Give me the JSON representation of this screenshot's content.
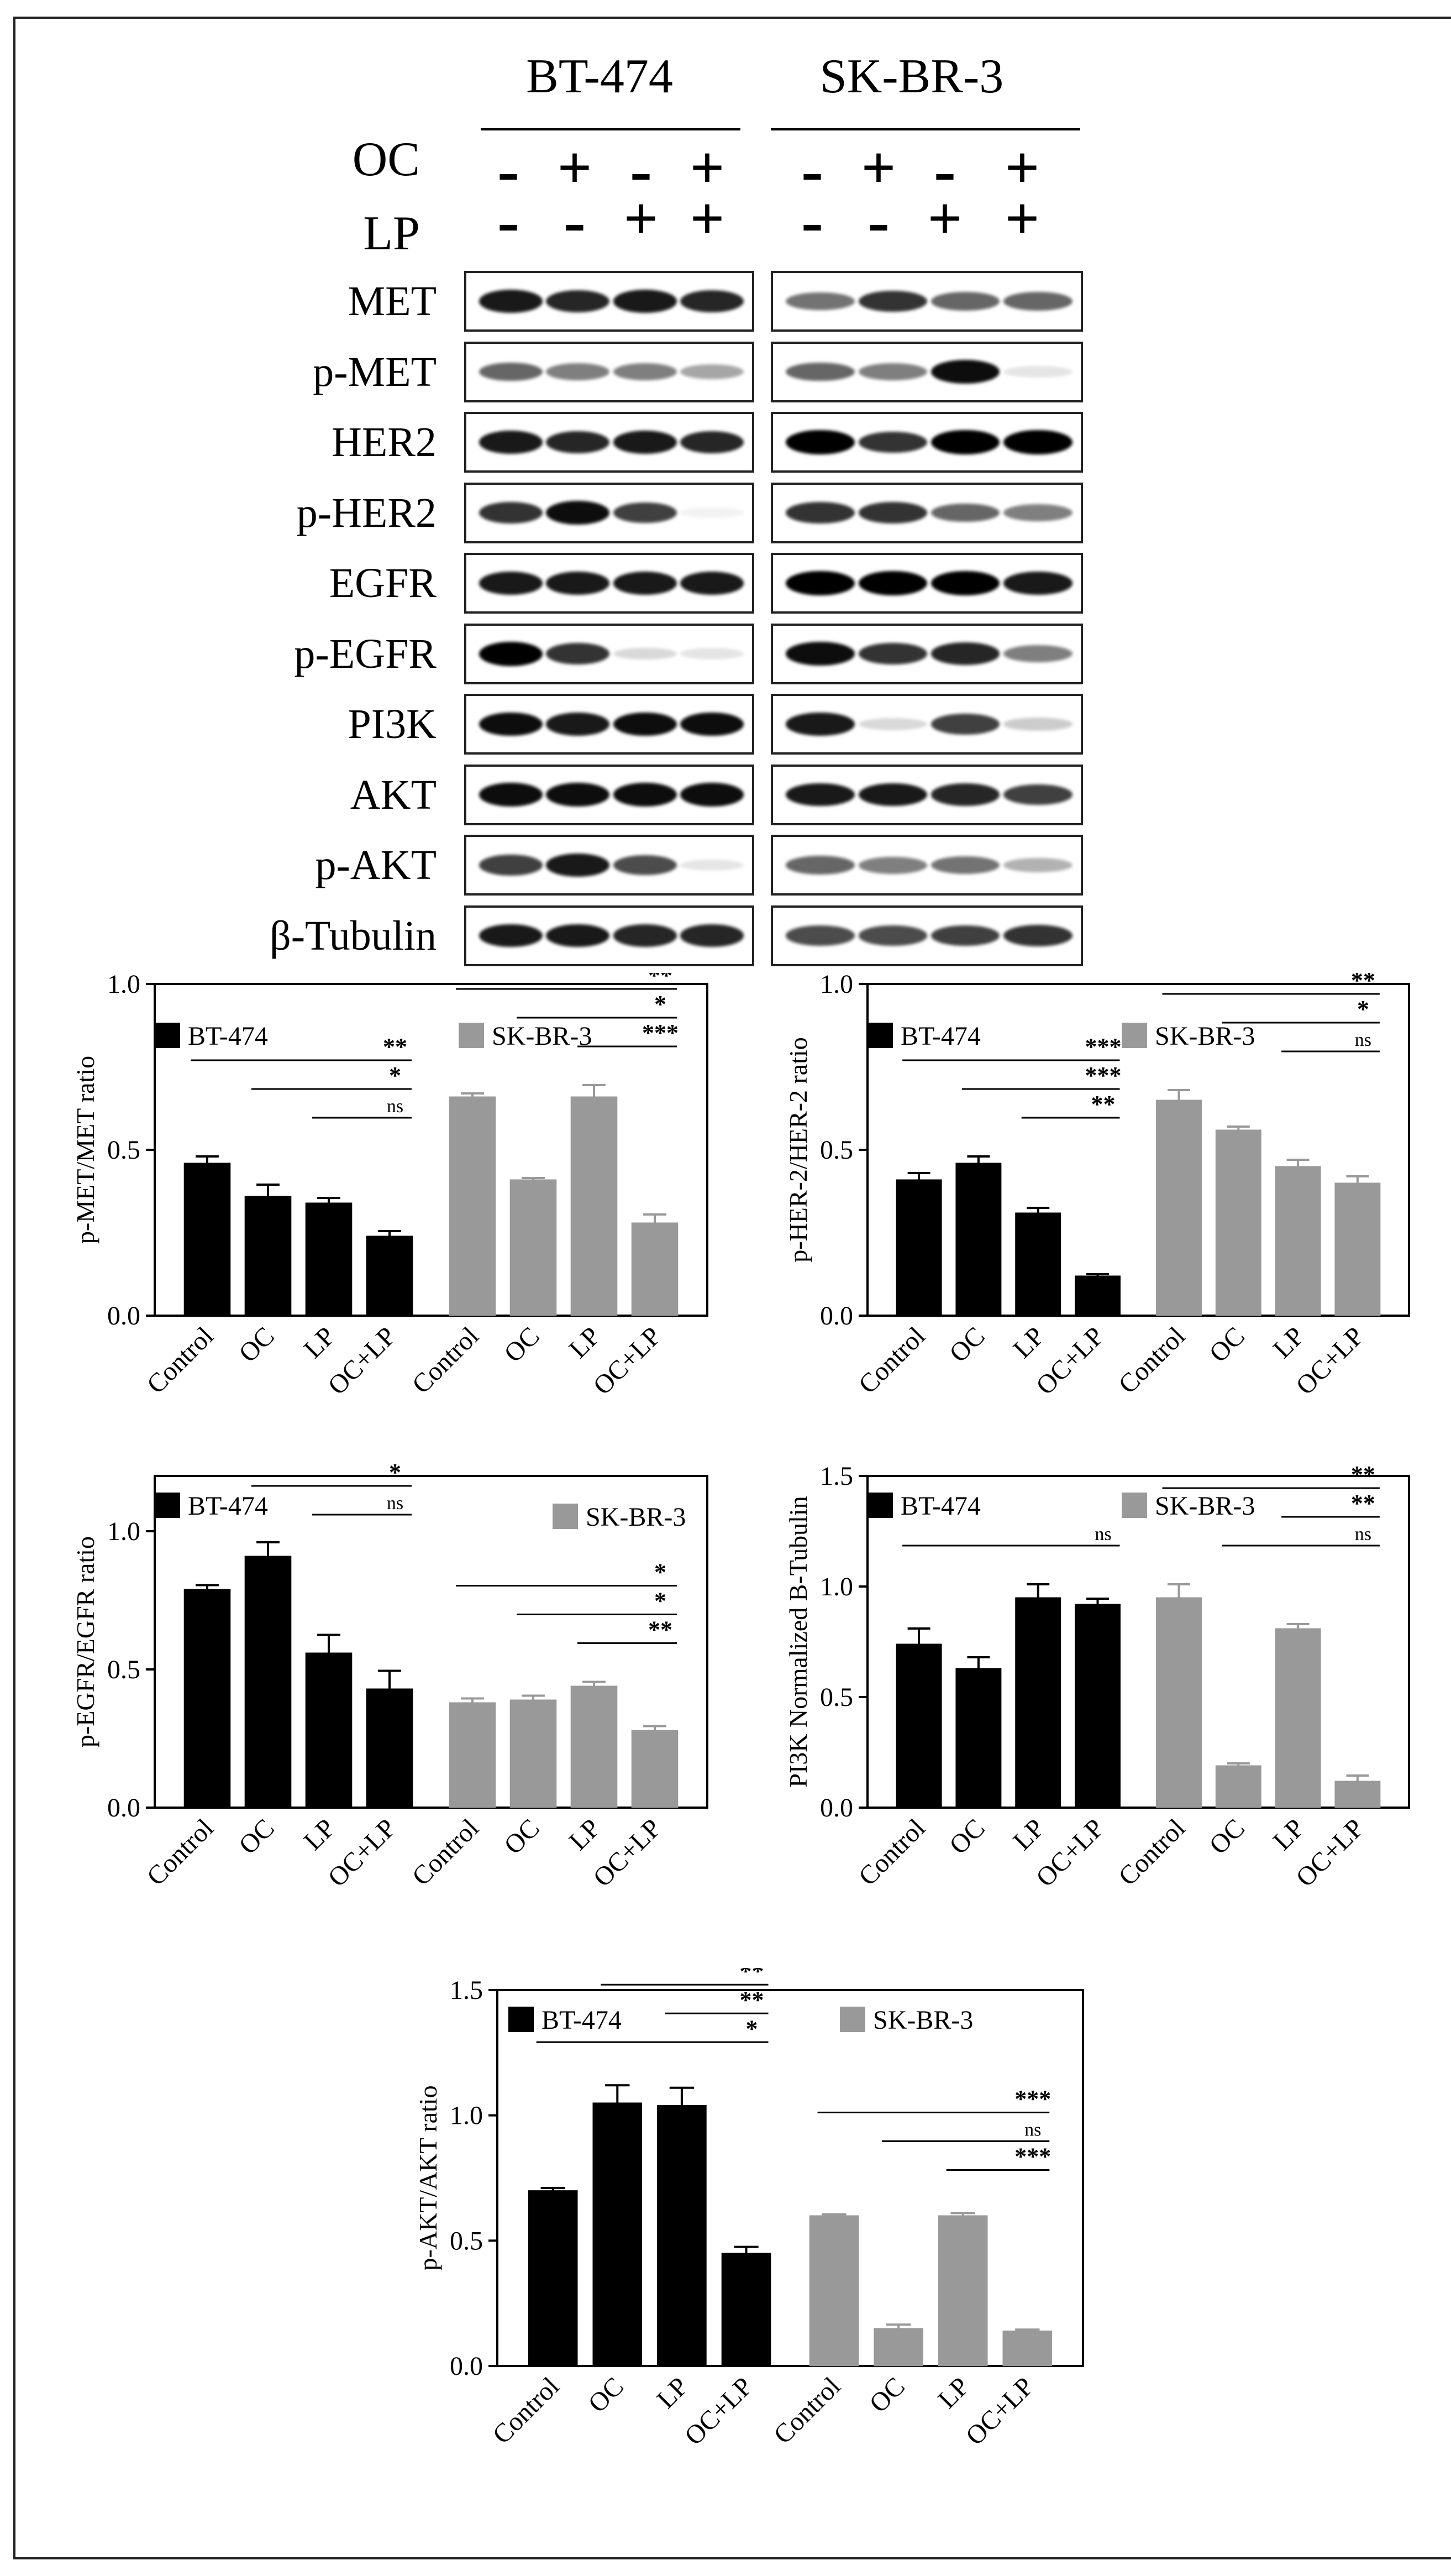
{
  "blot_panel": {
    "cell_lines": [
      "BT-474",
      "SK-BR-3"
    ],
    "treatment_rows": [
      {
        "label": "OC",
        "signs": [
          "-",
          "+",
          "-",
          "+"
        ]
      },
      {
        "label": "LP",
        "signs": [
          "-",
          "-",
          "+",
          "+"
        ]
      }
    ],
    "proteins": [
      "MET",
      "p-MET",
      "HER2",
      "p-HER2",
      "EGFR",
      "p-EGFR",
      "PI3K",
      "AKT",
      "p-AKT",
      "β-Tubulin"
    ],
    "band_intensity": {
      "BT-474": [
        [
          0.9,
          0.85,
          0.9,
          0.85
        ],
        [
          0.6,
          0.5,
          0.5,
          0.35
        ],
        [
          0.9,
          0.85,
          0.9,
          0.85
        ],
        [
          0.8,
          0.95,
          0.75,
          0.05
        ],
        [
          0.9,
          0.9,
          0.9,
          0.9
        ],
        [
          1.0,
          0.8,
          0.15,
          0.1
        ],
        [
          0.95,
          0.9,
          0.95,
          0.95
        ],
        [
          0.95,
          0.95,
          0.95,
          0.95
        ],
        [
          0.75,
          0.9,
          0.7,
          0.1
        ],
        [
          0.9,
          0.9,
          0.85,
          0.85
        ]
      ],
      "SK-BR-3": [
        [
          0.55,
          0.8,
          0.6,
          0.6
        ],
        [
          0.6,
          0.5,
          0.95,
          0.1
        ],
        [
          1.0,
          0.8,
          1.0,
          1.0
        ],
        [
          0.8,
          0.8,
          0.6,
          0.5
        ],
        [
          1.0,
          1.0,
          1.0,
          0.9
        ],
        [
          0.95,
          0.8,
          0.85,
          0.5
        ],
        [
          0.9,
          0.15,
          0.75,
          0.2
        ],
        [
          0.9,
          0.9,
          0.85,
          0.75
        ],
        [
          0.6,
          0.5,
          0.55,
          0.3
        ],
        [
          0.7,
          0.7,
          0.75,
          0.8
        ]
      ]
    }
  },
  "chart_data": [
    {
      "type": "bar",
      "ylabel": "p-MET/MET ratio",
      "ylim": [
        0,
        1.0
      ],
      "yticks": [
        "0.0",
        "0.5",
        "1.0"
      ],
      "categories": [
        "Control",
        "OC",
        "LP",
        "OC+LP"
      ],
      "series": [
        {
          "name": "BT-474",
          "color": "#000000",
          "values": [
            0.46,
            0.36,
            0.34,
            0.24
          ],
          "errors": [
            0.02,
            0.035,
            0.015,
            0.015
          ]
        },
        {
          "name": "SK-BR-3",
          "color": "#999999",
          "values": [
            0.66,
            0.41,
            0.66,
            0.28
          ],
          "errors": [
            0.01,
            0.005,
            0.035,
            0.025
          ]
        }
      ],
      "significance": [
        {
          "series": 0,
          "from": 0,
          "to": 3,
          "label": "**"
        },
        {
          "series": 0,
          "from": 1,
          "to": 3,
          "label": "*"
        },
        {
          "series": 0,
          "from": 2,
          "to": 3,
          "label": "ns"
        },
        {
          "series": 1,
          "from": 0,
          "to": 3,
          "label": "**"
        },
        {
          "series": 1,
          "from": 1,
          "to": 3,
          "label": "*"
        },
        {
          "series": 1,
          "from": 2,
          "to": 3,
          "label": "***"
        }
      ]
    },
    {
      "type": "bar",
      "ylabel": "p-HER-2/HER-2 ratio",
      "ylim": [
        0,
        1.0
      ],
      "yticks": [
        "0.0",
        "0.5",
        "1.0"
      ],
      "categories": [
        "Control",
        "OC",
        "LP",
        "OC+LP"
      ],
      "series": [
        {
          "name": "BT-474",
          "color": "#000000",
          "values": [
            0.41,
            0.46,
            0.31,
            0.12
          ],
          "errors": [
            0.02,
            0.02,
            0.015,
            0.005
          ]
        },
        {
          "name": "SK-BR-3",
          "color": "#999999",
          "values": [
            0.65,
            0.56,
            0.45,
            0.4
          ],
          "errors": [
            0.03,
            0.01,
            0.02,
            0.02
          ]
        }
      ],
      "significance": [
        {
          "series": 0,
          "from": 0,
          "to": 3,
          "label": "***"
        },
        {
          "series": 0,
          "from": 1,
          "to": 3,
          "label": "***"
        },
        {
          "series": 0,
          "from": 2,
          "to": 3,
          "label": "**"
        },
        {
          "series": 1,
          "from": 0,
          "to": 3,
          "label": "**"
        },
        {
          "series": 1,
          "from": 1,
          "to": 3,
          "label": "*"
        },
        {
          "series": 1,
          "from": 2,
          "to": 3,
          "label": "ns"
        }
      ]
    },
    {
      "type": "bar",
      "ylabel": "p-EGFR/EGFR ratio",
      "ylim": [
        0,
        1.2
      ],
      "yticks": [
        "0.0",
        "0.5",
        "1.0"
      ],
      "categories": [
        "Control",
        "OC",
        "LP",
        "OC+LP"
      ],
      "series": [
        {
          "name": "BT-474",
          "color": "#000000",
          "values": [
            0.79,
            0.91,
            0.56,
            0.43
          ],
          "errors": [
            0.015,
            0.05,
            0.065,
            0.065
          ]
        },
        {
          "name": "SK-BR-3",
          "color": "#999999",
          "values": [
            0.38,
            0.39,
            0.44,
            0.28
          ],
          "errors": [
            0.015,
            0.015,
            0.015,
            0.015
          ]
        }
      ],
      "significance": [
        {
          "series": 0,
          "from": 0,
          "to": 3,
          "label": "*"
        },
        {
          "series": 0,
          "from": 1,
          "to": 3,
          "label": "*"
        },
        {
          "series": 0,
          "from": 2,
          "to": 3,
          "label": "ns"
        },
        {
          "series": 1,
          "from": 0,
          "to": 3,
          "label": "*"
        },
        {
          "series": 1,
          "from": 1,
          "to": 3,
          "label": "*"
        },
        {
          "series": 1,
          "from": 2,
          "to": 3,
          "label": "**"
        }
      ]
    },
    {
      "type": "bar",
      "ylabel": "PI3K Normalized B-Tubulin",
      "ylim": [
        0,
        1.5
      ],
      "yticks": [
        "0.0",
        "0.5",
        "1.0",
        "1.5"
      ],
      "categories": [
        "Control",
        "OC",
        "LP",
        "OC+LP"
      ],
      "series": [
        {
          "name": "BT-474",
          "color": "#000000",
          "values": [
            0.74,
            0.63,
            0.95,
            0.92
          ],
          "errors": [
            0.07,
            0.05,
            0.06,
            0.025
          ]
        },
        {
          "name": "SK-BR-3",
          "color": "#999999",
          "values": [
            0.95,
            0.19,
            0.81,
            0.12
          ],
          "errors": [
            0.06,
            0.01,
            0.02,
            0.025
          ]
        }
      ],
      "significance": [
        {
          "series": 0,
          "from": 0,
          "to": 3,
          "label": "ns"
        },
        {
          "series": 1,
          "from": 0,
          "to": 3,
          "label": "**"
        },
        {
          "series": 1,
          "from": 2,
          "to": 3,
          "label": "**"
        },
        {
          "series": 1,
          "from": 1,
          "to": 3,
          "label": "ns"
        }
      ]
    },
    {
      "type": "bar",
      "ylabel": "p-AKT/AKT ratio",
      "ylim": [
        0,
        1.5
      ],
      "yticks": [
        "0.0",
        "0.5",
        "1.0",
        "1.5"
      ],
      "categories": [
        "Control",
        "OC",
        "LP",
        "OC+LP"
      ],
      "series": [
        {
          "name": "BT-474",
          "color": "#000000",
          "values": [
            0.7,
            1.05,
            1.04,
            0.45
          ],
          "errors": [
            0.01,
            0.07,
            0.07,
            0.025
          ]
        },
        {
          "name": "SK-BR-3",
          "color": "#999999",
          "values": [
            0.6,
            0.15,
            0.6,
            0.14
          ],
          "errors": [
            0.005,
            0.015,
            0.01,
            0.005
          ]
        }
      ],
      "significance": [
        {
          "series": 0,
          "from": 1,
          "to": 3,
          "label": "**"
        },
        {
          "series": 0,
          "from": 2,
          "to": 3,
          "label": "**"
        },
        {
          "series": 0,
          "from": 0,
          "to": 3,
          "label": "*"
        },
        {
          "series": 1,
          "from": 0,
          "to": 3,
          "label": "***"
        },
        {
          "series": 1,
          "from": 1,
          "to": 3,
          "label": "ns"
        },
        {
          "series": 1,
          "from": 2,
          "to": 3,
          "label": "***"
        }
      ]
    }
  ]
}
